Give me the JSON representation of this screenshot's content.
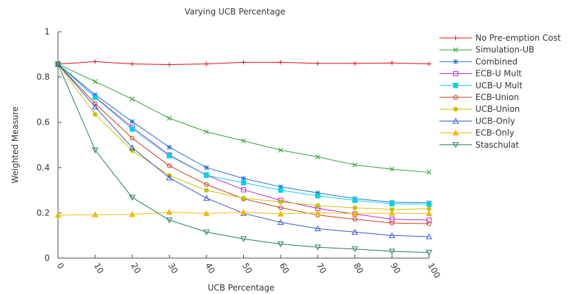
{
  "chart_data": {
    "type": "line",
    "title": "Varying UCB Percentage",
    "xlabel": "UCB Percentage",
    "ylabel": "Weighted Measure",
    "x": [
      0,
      10,
      20,
      30,
      40,
      50,
      60,
      70,
      80,
      90,
      100
    ],
    "xlim": [
      0,
      100
    ],
    "ylim": [
      0,
      1
    ],
    "xticks": [
      "0",
      "10",
      "20",
      "30",
      "40",
      "50",
      "60",
      "70",
      "80",
      "90",
      "100"
    ],
    "yticks": [
      "0",
      "0.2",
      "0.4",
      "0.6",
      "0.8",
      "1"
    ],
    "grid": false,
    "legend_position": "right",
    "series": [
      {
        "name": "No Pre-emption Cost",
        "color": "#e8000b",
        "marker": "plus",
        "values": [
          0.857,
          0.868,
          0.858,
          0.855,
          0.858,
          0.865,
          0.865,
          0.86,
          0.86,
          0.862,
          0.858
        ]
      },
      {
        "name": "Simulation-UB",
        "color": "#2ca02c",
        "marker": "x",
        "values": [
          0.857,
          0.78,
          0.703,
          0.618,
          0.558,
          0.518,
          0.477,
          0.447,
          0.412,
          0.393,
          0.379
        ]
      },
      {
        "name": "Combined",
        "color": "#1e6ec8",
        "marker": "star",
        "values": [
          0.857,
          0.722,
          0.603,
          0.49,
          0.4,
          0.352,
          0.315,
          0.288,
          0.263,
          0.247,
          0.245
        ]
      },
      {
        "name": "ECB-U Mult",
        "color": "#c020c8",
        "marker": "square-open",
        "values": [
          0.857,
          0.712,
          0.578,
          0.455,
          0.367,
          0.302,
          0.255,
          0.22,
          0.195,
          0.172,
          0.168
        ]
      },
      {
        "name": "UCB-U Mult",
        "color": "#00d2e6",
        "marker": "square-filled",
        "values": [
          0.857,
          0.71,
          0.57,
          0.452,
          0.366,
          0.333,
          0.3,
          0.275,
          0.255,
          0.24,
          0.238
        ]
      },
      {
        "name": "ECB-Union",
        "color": "#c03a10",
        "marker": "circle-open",
        "values": [
          0.857,
          0.683,
          0.53,
          0.408,
          0.325,
          0.262,
          0.223,
          0.19,
          0.172,
          0.155,
          0.152
        ]
      },
      {
        "name": "UCB-Union",
        "color": "#c8c000",
        "marker": "circle-filled",
        "values": [
          0.857,
          0.635,
          0.475,
          0.365,
          0.3,
          0.265,
          0.248,
          0.232,
          0.222,
          0.215,
          0.218
        ]
      },
      {
        "name": "UCB-Only",
        "color": "#3050d0",
        "marker": "triangle-open",
        "values": [
          0.857,
          0.668,
          0.488,
          0.355,
          0.265,
          0.198,
          0.158,
          0.13,
          0.115,
          0.1,
          0.095
        ]
      },
      {
        "name": "ECB-Only",
        "color": "#f0b800",
        "marker": "triangle-filled",
        "values": [
          0.19,
          0.192,
          0.193,
          0.203,
          0.197,
          0.203,
          0.195,
          0.2,
          0.197,
          0.198,
          0.197
        ]
      },
      {
        "name": "Staschulat",
        "color": "#1a7a50",
        "marker": "triangle-down-open",
        "values": [
          0.857,
          0.477,
          0.268,
          0.168,
          0.115,
          0.085,
          0.062,
          0.048,
          0.04,
          0.03,
          0.025
        ]
      }
    ]
  }
}
